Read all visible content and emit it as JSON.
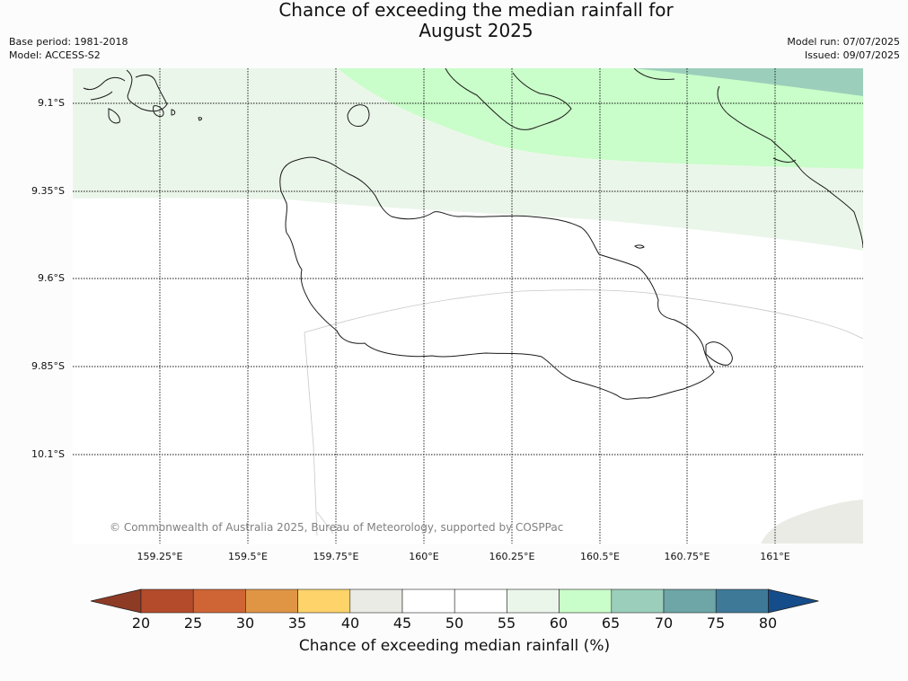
{
  "title_line1": "Chance of exceeding the median rainfall for",
  "title_line2": "August 2025",
  "meta_left": {
    "base_period": "Base period: 1981-2018",
    "model": "Model: ACCESS-S2"
  },
  "meta_right": {
    "model_run": "Model run: 07/07/2025",
    "issued": "Issued: 09/07/2025"
  },
  "lat_labels": [
    "9.1°S",
    "9.35°S",
    "9.6°S",
    "9.85°S",
    "10.1°S"
  ],
  "lon_labels": [
    "159.25°E",
    "159.5°E",
    "159.75°E",
    "160°E",
    "160.25°E",
    "160.5°E",
    "160.75°E",
    "161°E"
  ],
  "copyright": "© Commonwealth of Australia 2025, Bureau of Meteorology, supported by COSPPac",
  "colorbar": {
    "label": "Chance of exceeding median rainfall (%)",
    "ticks": [
      "20",
      "25",
      "30",
      "35",
      "40",
      "45",
      "50",
      "55",
      "60",
      "65",
      "70",
      "75",
      "80"
    ],
    "colors": {
      "below_20": "#8e3b25",
      "20_25": "#b44b2a",
      "25_30": "#cf6535",
      "30_35": "#e09545",
      "35_40": "#fdd36a",
      "40_45": "#ebebe6",
      "45_50": "#ffffff",
      "50_55": "#ffffff",
      "55_60": "#ebf6ea",
      "60_65": "#c9fdc9",
      "65_70": "#9bcfbb",
      "70_75": "#6ea6a7",
      "75_80": "#3e7998",
      "above_80": "#154c8a"
    }
  }
}
